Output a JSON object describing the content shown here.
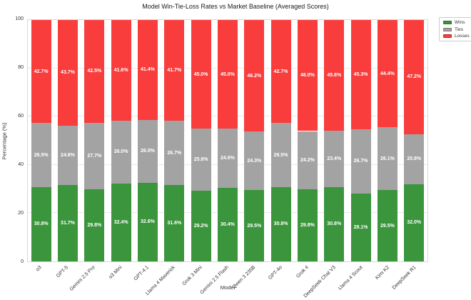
{
  "chart_data": {
    "type": "bar",
    "stacked": true,
    "title": "Model Win-Tie-Loss Rates vs Market Baseline (Averaged Scores)",
    "xlabel": "Model",
    "ylabel": "Percentage (%)",
    "ylim": [
      0,
      100
    ],
    "yticks": [
      0,
      20,
      40,
      60,
      80,
      100
    ],
    "grid": true,
    "legend_position": "upper-right-outside",
    "value_label_suffix": "%",
    "categories": [
      "o3",
      "GPT-5",
      "Gemini 2.5 Pro",
      "o3 Mini",
      "GPT-4.1",
      "Llama 4 Maverick",
      "Grok 3 Mini",
      "Gemini 2.5 Flash",
      "Qwen 3 235B",
      "GPT-4o",
      "Grok 4",
      "DeepSeek Chat V3",
      "Llama 4 Scout",
      "Kimi K2",
      "DeepSeek R1"
    ],
    "series": [
      {
        "name": "Wins",
        "color": "#3b953d",
        "values": [
          30.8,
          31.7,
          29.8,
          32.4,
          32.6,
          31.6,
          29.2,
          30.4,
          29.5,
          30.8,
          29.8,
          30.8,
          28.1,
          29.5,
          32.0
        ]
      },
      {
        "name": "Ties",
        "color": "#a3a3a3",
        "values": [
          26.5,
          24.6,
          27.7,
          26.0,
          26.0,
          26.7,
          25.8,
          24.6,
          24.3,
          26.5,
          24.2,
          23.4,
          26.7,
          26.1,
          20.8
        ]
      },
      {
        "name": "Losses",
        "color": "#f93c3c",
        "values": [
          42.7,
          43.7,
          42.5,
          41.6,
          41.4,
          41.7,
          45.0,
          45.0,
          46.2,
          42.7,
          46.0,
          45.8,
          45.3,
          44.4,
          47.2
        ]
      }
    ]
  }
}
